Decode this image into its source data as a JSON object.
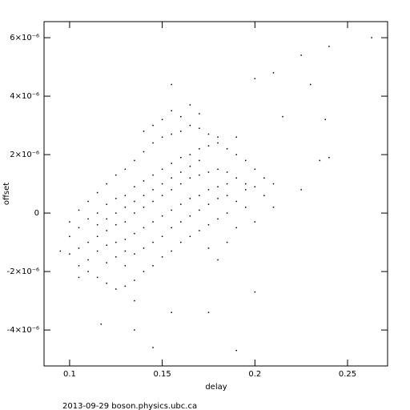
{
  "chart_data": {
    "type": "scatter",
    "xlabel": "delay",
    "ylabel": "offset",
    "footer": "2013-09-29  boson.physics.ubc.ca",
    "xlim": [
      0.0862,
      0.2716
    ],
    "ylim": [
      -5.23e-06,
      6.55e-06
    ],
    "xticks": [
      0.1,
      0.15,
      0.2,
      0.25
    ],
    "yticks": [
      {
        "value": -4e-06,
        "label": "-4×10⁻⁶"
      },
      {
        "value": -2e-06,
        "label": "-2×10⁻⁶"
      },
      0,
      {
        "value": 2e-06,
        "label": "2×10⁻⁶"
      },
      {
        "value": 4e-06,
        "label": "4×10⁻⁶"
      },
      {
        "value": 6e-06,
        "label": "6×10⁻⁶"
      }
    ],
    "color": "#000000",
    "points": [
      [
        0.1,
        -8e-07
      ],
      [
        0.1,
        -1.4e-06
      ],
      [
        0.1,
        -3e-07
      ],
      [
        0.105,
        -1.2e-06
      ],
      [
        0.105,
        -5e-07
      ],
      [
        0.105,
        -1.8e-06
      ],
      [
        0.105,
        1e-07
      ],
      [
        0.11,
        -1e-06
      ],
      [
        0.11,
        -2e-07
      ],
      [
        0.11,
        -1.6e-06
      ],
      [
        0.11,
        4e-07
      ],
      [
        0.11,
        -2e-06
      ],
      [
        0.115,
        -8e-07
      ],
      [
        0.115,
        -1.3e-06
      ],
      [
        0.115,
        0.0
      ],
      [
        0.115,
        7e-07
      ],
      [
        0.115,
        -2.2e-06
      ],
      [
        0.115,
        -4e-07
      ],
      [
        0.12,
        -6e-07
      ],
      [
        0.12,
        -1.1e-06
      ],
      [
        0.12,
        3e-07
      ],
      [
        0.12,
        1e-06
      ],
      [
        0.12,
        -2.4e-06
      ],
      [
        0.12,
        -1.7e-06
      ],
      [
        0.12,
        -2e-07
      ],
      [
        0.125,
        -4e-07
      ],
      [
        0.125,
        -1e-06
      ],
      [
        0.125,
        5e-07
      ],
      [
        0.125,
        1.3e-06
      ],
      [
        0.125,
        -2.6e-06
      ],
      [
        0.125,
        -1.5e-06
      ],
      [
        0.125,
        0.0
      ],
      [
        0.13,
        -3e-07
      ],
      [
        0.13,
        -9e-07
      ],
      [
        0.13,
        6e-07
      ],
      [
        0.13,
        1.5e-06
      ],
      [
        0.13,
        -2.5e-06
      ],
      [
        0.13,
        -1.8e-06
      ],
      [
        0.13,
        2e-07
      ],
      [
        0.13,
        -1.3e-06
      ],
      [
        0.135,
        0.0
      ],
      [
        0.135,
        -7e-07
      ],
      [
        0.135,
        9e-07
      ],
      [
        0.135,
        1.8e-06
      ],
      [
        0.135,
        -2.3e-06
      ],
      [
        0.135,
        -1.4e-06
      ],
      [
        0.135,
        4e-07
      ],
      [
        0.135,
        -3e-06
      ],
      [
        0.14,
        2e-07
      ],
      [
        0.14,
        -5e-07
      ],
      [
        0.14,
        1.1e-06
      ],
      [
        0.14,
        2.1e-06
      ],
      [
        0.14,
        -2e-06
      ],
      [
        0.14,
        -1.2e-06
      ],
      [
        0.14,
        6e-07
      ],
      [
        0.14,
        2.8e-06
      ],
      [
        0.145,
        4e-07
      ],
      [
        0.145,
        -3e-07
      ],
      [
        0.145,
        1.3e-06
      ],
      [
        0.145,
        2.4e-06
      ],
      [
        0.145,
        -1.8e-06
      ],
      [
        0.145,
        -1e-06
      ],
      [
        0.145,
        8e-07
      ],
      [
        0.145,
        3e-06
      ],
      [
        0.15,
        6e-07
      ],
      [
        0.15,
        -1e-07
      ],
      [
        0.15,
        1.5e-06
      ],
      [
        0.15,
        2.6e-06
      ],
      [
        0.15,
        -1.5e-06
      ],
      [
        0.15,
        -8e-07
      ],
      [
        0.15,
        1e-06
      ],
      [
        0.15,
        3.2e-06
      ],
      [
        0.155,
        8e-07
      ],
      [
        0.155,
        1e-07
      ],
      [
        0.155,
        1.7e-06
      ],
      [
        0.155,
        2.7e-06
      ],
      [
        0.155,
        -1.3e-06
      ],
      [
        0.155,
        -5e-07
      ],
      [
        0.155,
        1.2e-06
      ],
      [
        0.155,
        3.5e-06
      ],
      [
        0.16,
        1e-06
      ],
      [
        0.16,
        3e-07
      ],
      [
        0.16,
        1.9e-06
      ],
      [
        0.16,
        2.8e-06
      ],
      [
        0.16,
        -1e-06
      ],
      [
        0.16,
        -3e-07
      ],
      [
        0.16,
        1.4e-06
      ],
      [
        0.16,
        3.3e-06
      ],
      [
        0.165,
        1.2e-06
      ],
      [
        0.165,
        5e-07
      ],
      [
        0.165,
        2e-06
      ],
      [
        0.165,
        3e-06
      ],
      [
        0.165,
        -8e-07
      ],
      [
        0.165,
        -1e-07
      ],
      [
        0.165,
        1.6e-06
      ],
      [
        0.165,
        3.7e-06
      ],
      [
        0.17,
        1.3e-06
      ],
      [
        0.17,
        6e-07
      ],
      [
        0.17,
        2.2e-06
      ],
      [
        0.17,
        2.9e-06
      ],
      [
        0.17,
        -6e-07
      ],
      [
        0.17,
        1e-07
      ],
      [
        0.17,
        1.8e-06
      ],
      [
        0.17,
        3.4e-06
      ],
      [
        0.175,
        1.4e-06
      ],
      [
        0.175,
        8e-07
      ],
      [
        0.175,
        2.3e-06
      ],
      [
        0.175,
        2.7e-06
      ],
      [
        0.175,
        -4e-07
      ],
      [
        0.175,
        3e-07
      ],
      [
        0.175,
        -1.2e-06
      ],
      [
        0.18,
        1.5e-06
      ],
      [
        0.18,
        9e-07
      ],
      [
        0.18,
        2.4e-06
      ],
      [
        0.18,
        2.6e-06
      ],
      [
        0.18,
        -2e-07
      ],
      [
        0.18,
        5e-07
      ],
      [
        0.18,
        -1.6e-06
      ],
      [
        0.185,
        1.4e-06
      ],
      [
        0.185,
        1e-06
      ],
      [
        0.185,
        2.2e-06
      ],
      [
        0.185,
        0.0
      ],
      [
        0.185,
        6e-07
      ],
      [
        0.185,
        -1e-06
      ],
      [
        0.19,
        1.2e-06
      ],
      [
        0.19,
        2e-06
      ],
      [
        0.19,
        4e-07
      ],
      [
        0.19,
        2.6e-06
      ],
      [
        0.19,
        -5e-07
      ],
      [
        0.195,
        1e-06
      ],
      [
        0.195,
        1.8e-06
      ],
      [
        0.195,
        2e-07
      ],
      [
        0.195,
        8e-07
      ],
      [
        0.2,
        9e-07
      ],
      [
        0.2,
        1.5e-06
      ],
      [
        0.2,
        -3e-07
      ],
      [
        0.205,
        6e-07
      ],
      [
        0.205,
        1.2e-06
      ],
      [
        0.21,
        1e-06
      ],
      [
        0.21,
        2e-07
      ],
      [
        0.263,
        6e-06
      ],
      [
        0.24,
        5.7e-06
      ],
      [
        0.225,
        5.4e-06
      ],
      [
        0.21,
        4.8e-06
      ],
      [
        0.2,
        4.6e-06
      ],
      [
        0.23,
        4.4e-06
      ],
      [
        0.155,
        4.4e-06
      ],
      [
        0.19,
        -4.7e-06
      ],
      [
        0.145,
        -4.6e-06
      ],
      [
        0.117,
        -3.8e-06
      ],
      [
        0.105,
        -2.2e-06
      ],
      [
        0.24,
        1.9e-06
      ],
      [
        0.235,
        1.8e-06
      ],
      [
        0.225,
        8e-07
      ],
      [
        0.2,
        -2.7e-06
      ],
      [
        0.175,
        -3.4e-06
      ],
      [
        0.155,
        -3.4e-06
      ],
      [
        0.135,
        -4e-06
      ],
      [
        0.095,
        -1.3e-06
      ],
      [
        0.238,
        3.2e-06
      ],
      [
        0.215,
        3.3e-06
      ]
    ]
  }
}
